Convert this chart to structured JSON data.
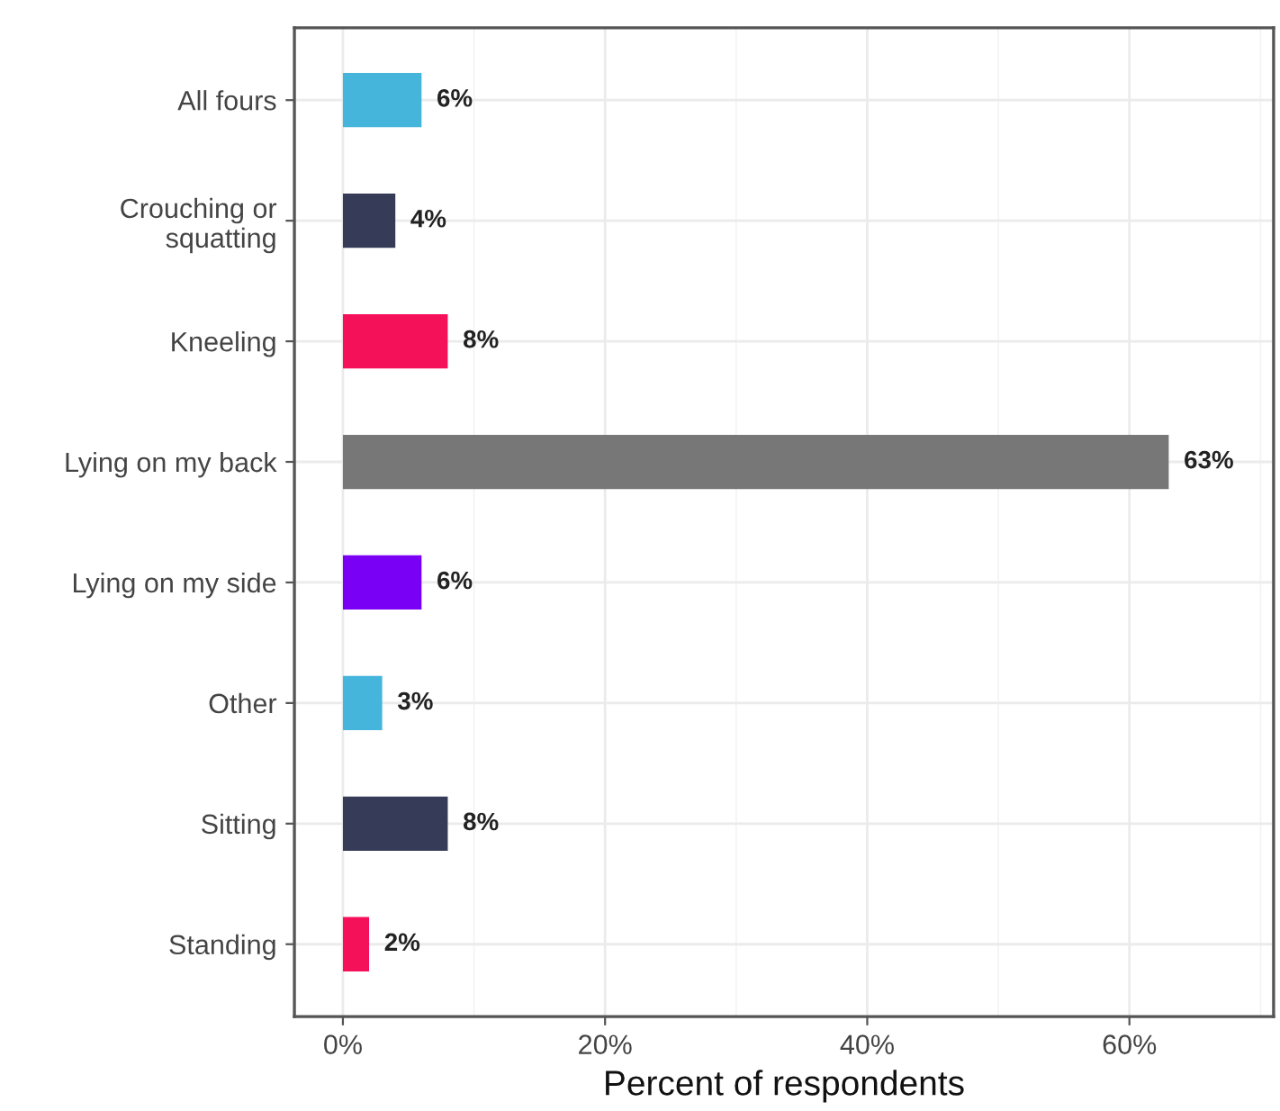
{
  "chart_data": {
    "type": "bar",
    "orientation": "horizontal",
    "xlabel": "Percent of respondents",
    "categories": [
      "All fours",
      "Crouching or\nsquatting",
      "Kneeling",
      "Lying on my back",
      "Lying on my side",
      "Other",
      "Sitting",
      "Standing"
    ],
    "values": [
      6,
      4,
      8,
      63,
      6,
      3,
      8,
      2
    ],
    "colors": [
      "#45b5dc",
      "#363b58",
      "#f5105a",
      "#777777",
      "#7a00f5",
      "#45b5dc",
      "#363b58",
      "#f5105a"
    ],
    "value_labels": [
      "6%",
      "4%",
      "8%",
      "63%",
      "6%",
      "3%",
      "8%",
      "2%"
    ],
    "xlim": [
      -3.7,
      71
    ],
    "xticks": [
      {
        "value": 0,
        "label": "0%"
      },
      {
        "value": 20,
        "label": "20%"
      },
      {
        "value": 40,
        "label": "40%"
      },
      {
        "value": 60,
        "label": "60%"
      }
    ],
    "grid": true,
    "legend": false
  }
}
